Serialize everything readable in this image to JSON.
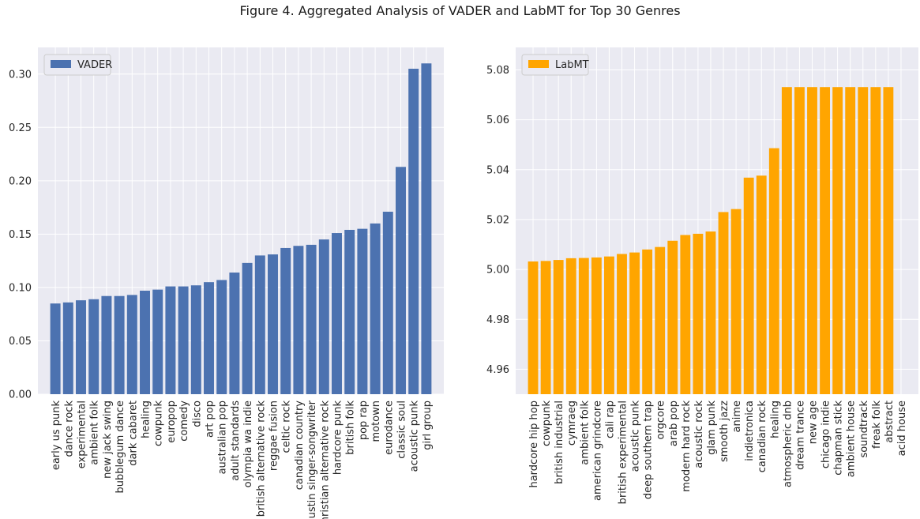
{
  "title": "Figure 4. Aggregated Analysis of VADER and LabMT for Top 30 Genres",
  "colors": {
    "panel_bg": "#EAEAF2",
    "grid": "#ffffff",
    "vader": "#4C72B0",
    "labmt": "#FFA500",
    "text": "#262626"
  },
  "chart_data": [
    {
      "type": "bar",
      "grid": true,
      "legend_position": "top-left",
      "series": [
        {
          "name": "VADER",
          "color": "#4C72B0",
          "values": [
            0.085,
            0.086,
            0.088,
            0.089,
            0.092,
            0.092,
            0.093,
            0.097,
            0.098,
            0.101,
            0.101,
            0.102,
            0.105,
            0.107,
            0.114,
            0.123,
            0.13,
            0.131,
            0.137,
            0.139,
            0.14,
            0.145,
            0.151,
            0.154,
            0.155,
            0.16,
            0.171,
            0.213,
            0.305,
            0.31
          ]
        }
      ],
      "categories": [
        "early us punk",
        "dance rock",
        "experimental",
        "ambient folk",
        "new jack swing",
        "bubblegum dance",
        "dark cabaret",
        "healing",
        "cowpunk",
        "europop",
        "comedy",
        "disco",
        "art pop",
        "australian pop",
        "adult standards",
        "olympia wa indie",
        "british alternative rock",
        "reggae fusion",
        "celtic rock",
        "canadian country",
        "austin singer-songwriter",
        "christian alternative rock",
        "hardcore punk",
        "british folk",
        "pop rap",
        "motown",
        "eurodance",
        "classic soul",
        "acoustic punk",
        "girl group"
      ],
      "ylim": [
        0,
        0.325
      ],
      "yticks": [
        0,
        0.05,
        0.1,
        0.15,
        0.2,
        0.25,
        0.3
      ],
      "ytick_labels": [
        "0.00",
        "0.05",
        "0.10",
        "0.15",
        "0.20",
        "0.25",
        "0.30"
      ]
    },
    {
      "type": "bar",
      "grid": true,
      "legend_position": "top-left",
      "series": [
        {
          "name": "LabMT",
          "color": "#FFA500",
          "values": [
            5.0032,
            5.0034,
            5.0038,
            5.0045,
            5.0046,
            5.0048,
            5.0052,
            5.0062,
            5.0068,
            5.008,
            5.009,
            5.0115,
            5.0138,
            5.0143,
            5.0152,
            5.023,
            5.0242,
            5.0368,
            5.0376,
            5.0486,
            5.0731,
            5.0731,
            5.0731,
            5.0731,
            5.0731,
            5.0731,
            5.0731,
            5.0731,
            5.0731,
            4.95
          ]
        }
      ],
      "categories": [
        "hardcore hip hop",
        "cowpunk",
        "british industrial",
        "cymraeg",
        "ambient folk",
        "american grindcore",
        "cali rap",
        "british experimental",
        "acoustic punk",
        "deep southern trap",
        "orgcore",
        "arab pop",
        "modern hard rock",
        "acoustic rock",
        "glam punk",
        "smooth jazz",
        "anime",
        "indietronica",
        "canadian rock",
        "healing",
        "atmospheric dnb",
        "dream trance",
        "new age",
        "chicago indie",
        "chapman stick",
        "ambient house",
        "soundtrack",
        "freak folk",
        "abstract",
        "acid house"
      ],
      "ylim": [
        4.95,
        5.089
      ],
      "yticks": [
        4.96,
        4.98,
        5.0,
        5.02,
        5.04,
        5.06,
        5.08
      ],
      "ytick_labels": [
        "4.96",
        "4.98",
        "5.00",
        "5.02",
        "5.04",
        "5.06",
        "5.08"
      ]
    }
  ]
}
